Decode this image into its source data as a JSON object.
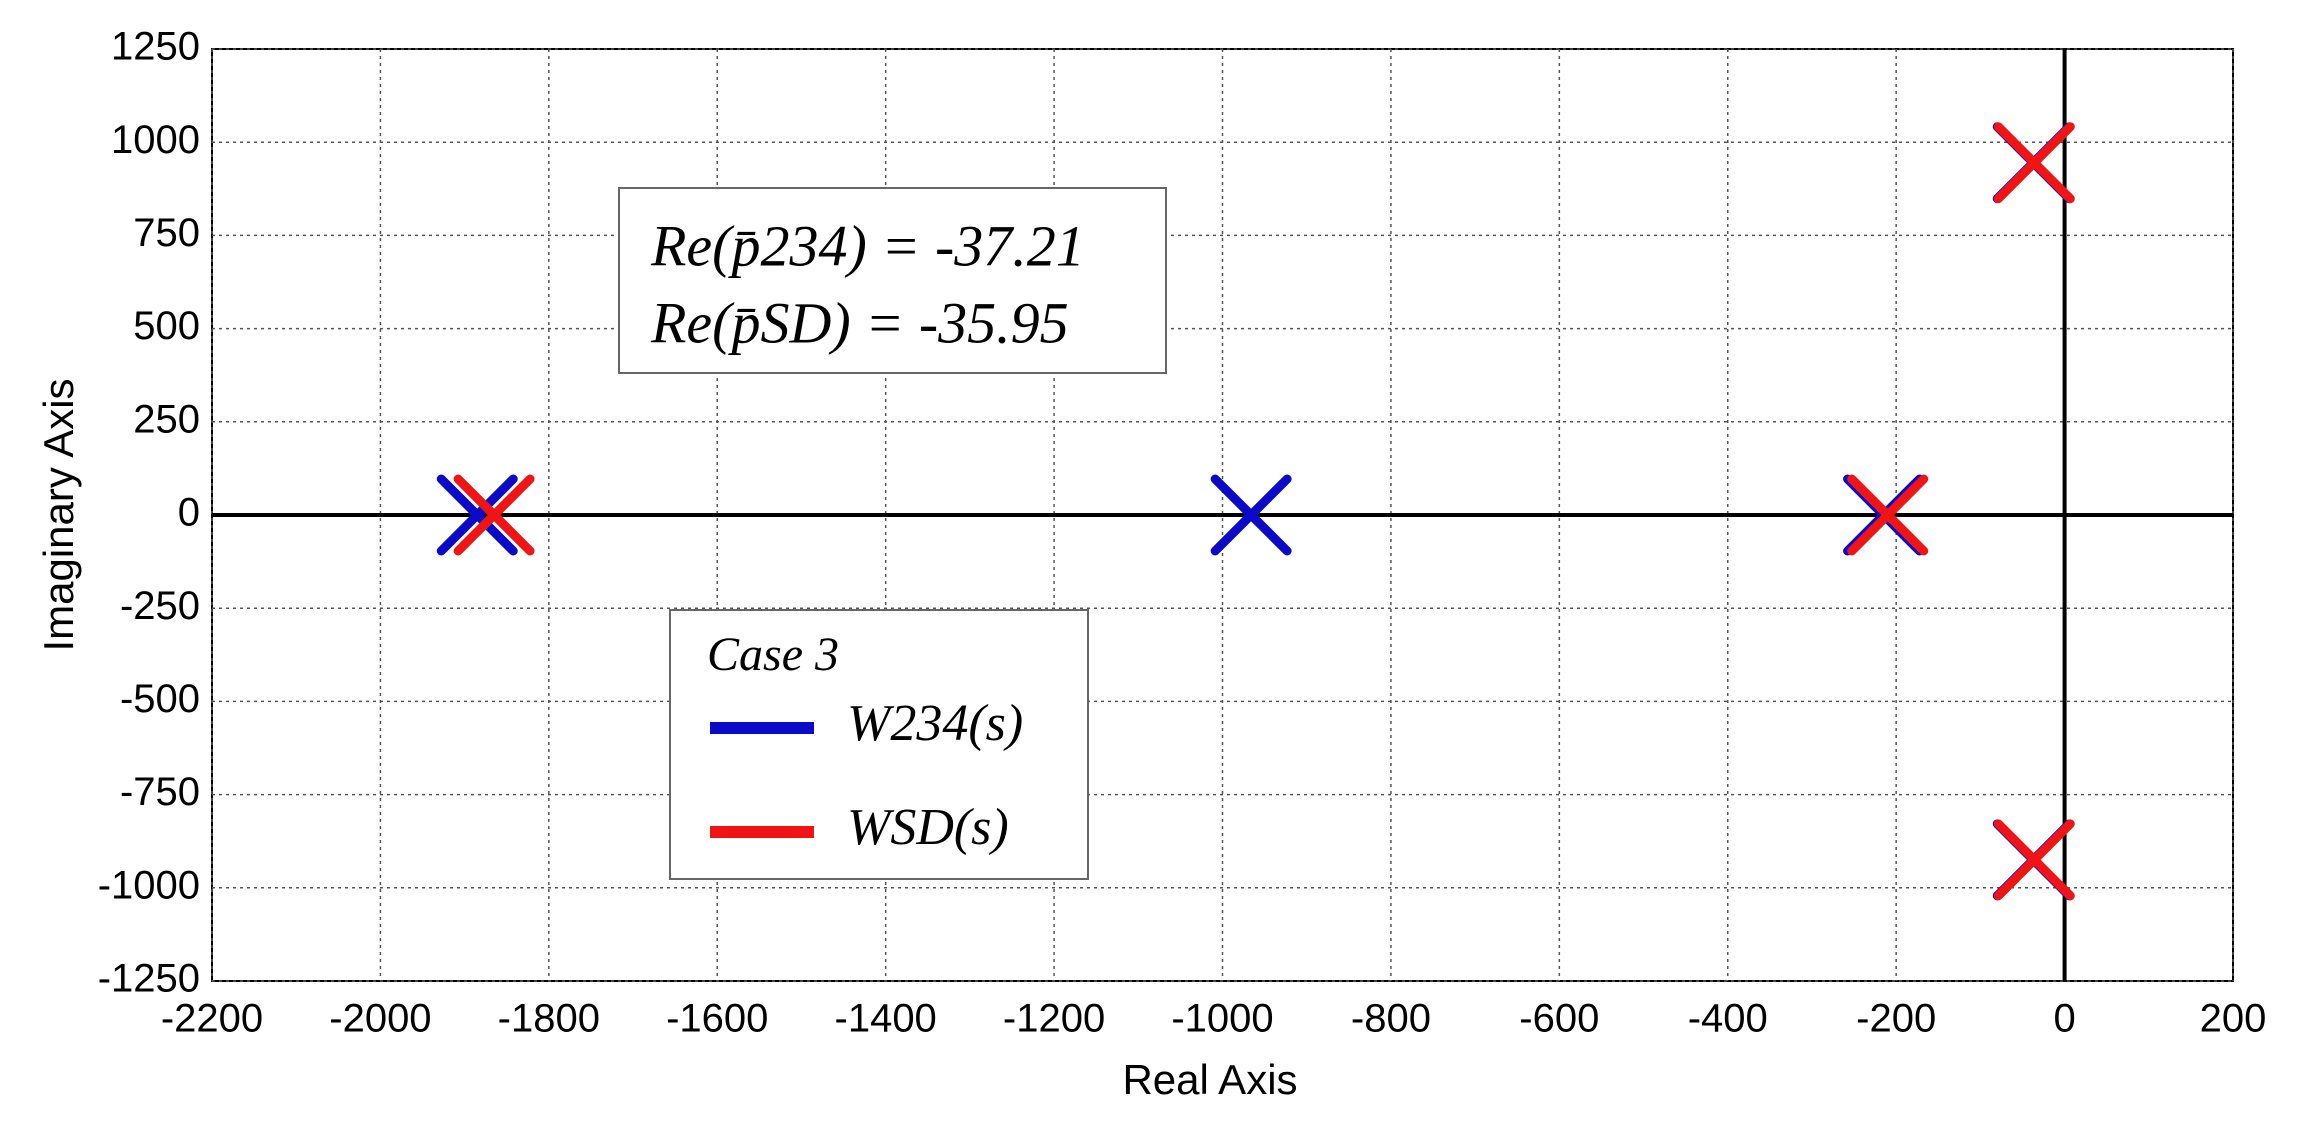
{
  "chart_data": {
    "type": "scatter",
    "xlabel": "Real Axis",
    "ylabel": "Imaginary Axis",
    "xlim": [
      -2200,
      200
    ],
    "xticks": [
      -2200,
      -2000,
      -1800,
      -1600,
      -1400,
      -1200,
      -1000,
      -800,
      -600,
      -400,
      -200,
      0,
      200
    ],
    "ylim": [
      -1250,
      1250
    ],
    "yticks": [
      -1250,
      -1000,
      -750,
      -500,
      -250,
      0,
      250,
      500,
      750,
      1000,
      1250
    ],
    "grid": true,
    "zero_lines": true,
    "marker": "x",
    "legend_title": "Case 3",
    "annotations": [
      "Re(p̄234) = -37.21",
      "Re(p̄SD) = -35.95"
    ],
    "series": [
      {
        "name": "W234(s)",
        "color": "#0a0ac8",
        "x": [
          -1885,
          -966,
          -215,
          -37.21,
          -37.21
        ],
        "values": [
          0,
          0,
          0,
          945,
          -925
        ]
      },
      {
        "name": "WSD(s)",
        "color": "#f01414",
        "x": [
          -1865,
          -210,
          -35.95,
          -35.95
        ],
        "values": [
          0,
          0,
          945,
          -925
        ]
      }
    ]
  }
}
